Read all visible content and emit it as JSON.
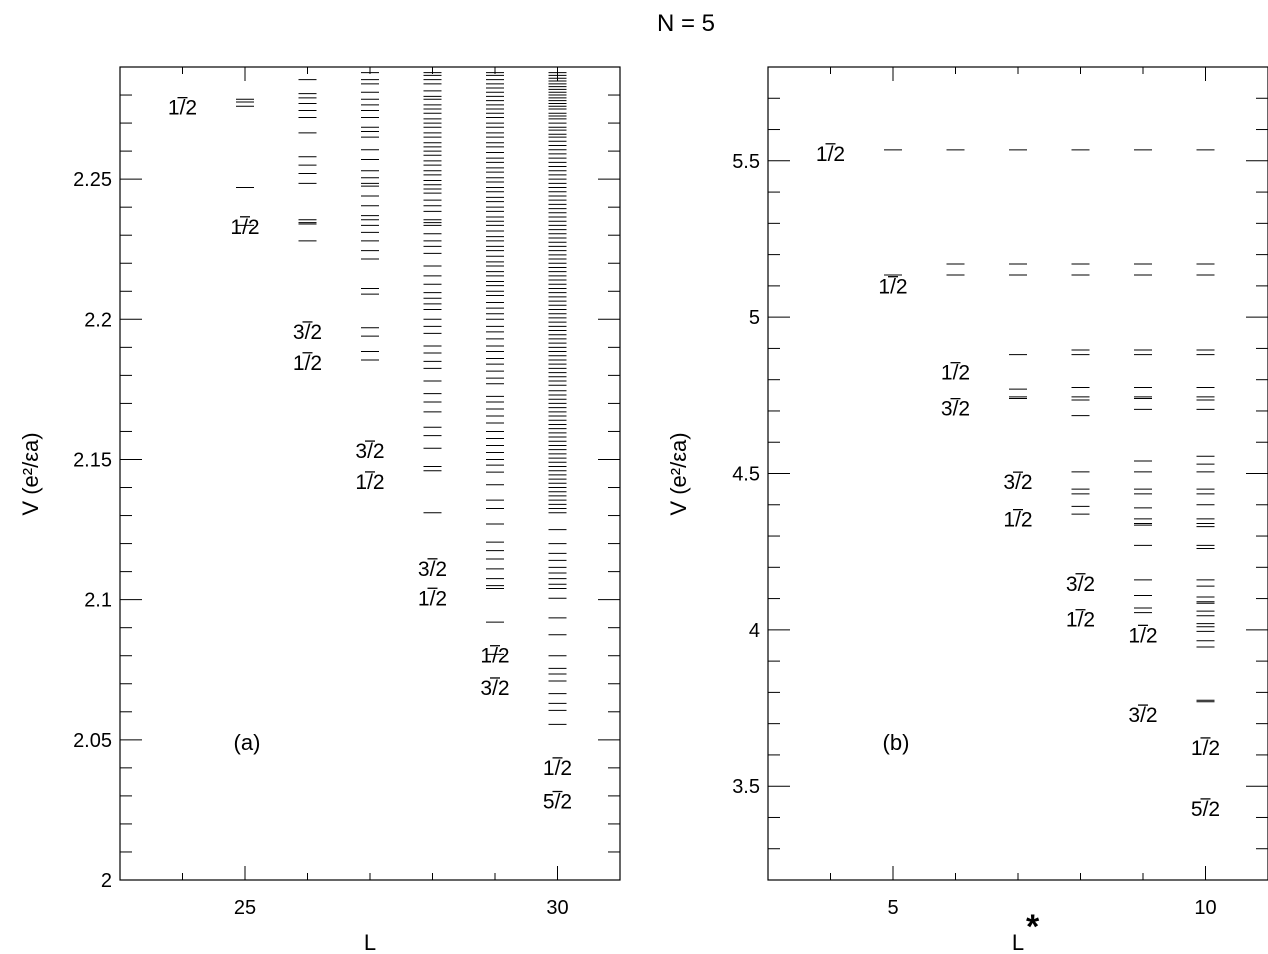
{
  "figure": {
    "title": "N = 5"
  },
  "colors": {
    "axis": "#000000",
    "levels": "#000000",
    "background": "#ffffff"
  },
  "chart_data": [
    {
      "type": "scatter",
      "panel_label": "(a)",
      "xlabel": "L",
      "ylabel": "V",
      "ylabel_unit": "(e²/εa)",
      "xlim": [
        23,
        31
      ],
      "ylim": [
        2.0,
        2.29
      ],
      "xticks": [
        25,
        30
      ],
      "yticks": [
        2,
        2.05,
        2.1,
        2.15,
        2.2,
        2.25
      ],
      "ytick_labels": [
        "2",
        "2.05",
        "2.1",
        "2.15",
        "2.2",
        "2.25"
      ],
      "grid": false,
      "levels": [
        {
          "L": 25,
          "values": [
            2.2785,
            2.2775,
            2.276,
            2.247,
            2.2335
          ]
        },
        {
          "L": 26,
          "values": [
            2.2855,
            2.2805,
            2.279,
            2.277,
            2.2745,
            2.272,
            2.2665,
            2.258,
            2.255,
            2.252,
            2.2485,
            2.2355,
            2.2345,
            2.234,
            2.228
          ]
        },
        {
          "L": 27,
          "values": [
            2.288,
            2.2855,
            2.284,
            2.281,
            2.2785,
            2.2765,
            2.2745,
            2.272,
            2.2685,
            2.267,
            2.265,
            2.2605,
            2.257,
            2.253,
            2.2505,
            2.2485,
            2.2475,
            2.244,
            2.2405,
            2.237,
            2.2355,
            2.2335,
            2.231,
            2.228,
            2.2245,
            2.2215,
            2.211,
            2.209,
            2.197,
            2.194,
            2.1885,
            2.1855
          ]
        },
        {
          "L": 28,
          "values": [
            2.288,
            2.287,
            2.2855,
            2.284,
            2.2815,
            2.2795,
            2.2785,
            2.2765,
            2.275,
            2.2735,
            2.2715,
            2.27,
            2.2685,
            2.2665,
            2.265,
            2.263,
            2.2615,
            2.26,
            2.2585,
            2.2565,
            2.255,
            2.253,
            2.2515,
            2.2495,
            2.248,
            2.2465,
            2.245,
            2.2425,
            2.2405,
            2.2385,
            2.2355,
            2.2345,
            2.2335,
            2.2305,
            2.228,
            2.226,
            2.2235,
            2.219,
            2.2155,
            2.2125,
            2.2095,
            2.2075,
            2.2055,
            2.2035,
            2.2,
            2.1975,
            2.195,
            2.1905,
            2.188,
            2.185,
            2.1825,
            2.178,
            2.1735,
            2.1705,
            2.167,
            2.1615,
            2.1585,
            2.154,
            2.1475,
            2.146,
            2.131
          ]
        },
        {
          "L": 29,
          "values": [
            2.288,
            2.287,
            2.2855,
            2.284,
            2.2825,
            2.281,
            2.2795,
            2.278,
            2.2765,
            2.275,
            2.2735,
            2.272,
            2.27,
            2.2685,
            2.2665,
            2.265,
            2.263,
            2.2615,
            2.2595,
            2.2575,
            2.256,
            2.254,
            2.2525,
            2.2505,
            2.249,
            2.247,
            2.2455,
            2.2435,
            2.242,
            2.24,
            2.2385,
            2.2365,
            2.235,
            2.2335,
            2.2315,
            2.2295,
            2.228,
            2.226,
            2.2245,
            2.2225,
            2.2205,
            2.219,
            2.217,
            2.2155,
            2.2135,
            2.212,
            2.21,
            2.2085,
            2.206,
            2.204,
            2.202,
            2.2,
            2.1975,
            2.1955,
            2.193,
            2.1905,
            2.1885,
            2.186,
            2.184,
            2.1815,
            2.179,
            2.177,
            2.1725,
            2.1705,
            2.168,
            2.1655,
            2.163,
            2.16,
            2.1575,
            2.155,
            2.1525,
            2.15,
            2.148,
            2.1455,
            2.141,
            2.1355,
            2.1325,
            2.127,
            2.1205,
            2.1175,
            2.1145,
            2.111,
            2.1075,
            2.105,
            2.104,
            2.092,
            2.0805
          ]
        },
        {
          "L": 30,
          "values": [
            2.288,
            2.287,
            2.286,
            2.285,
            2.284,
            2.283,
            2.282,
            2.281,
            2.28,
            2.279,
            2.278,
            2.277,
            2.276,
            2.275,
            2.2735,
            2.2725,
            2.2715,
            2.27,
            2.2685,
            2.2675,
            2.266,
            2.265,
            2.2635,
            2.262,
            2.2605,
            2.259,
            2.2575,
            2.256,
            2.2545,
            2.253,
            2.2515,
            2.25,
            2.2485,
            2.247,
            2.2455,
            2.244,
            2.2425,
            2.241,
            2.2395,
            2.238,
            2.2365,
            2.235,
            2.2335,
            2.232,
            2.2305,
            2.229,
            2.2275,
            2.226,
            2.2245,
            2.223,
            2.2215,
            2.22,
            2.2185,
            2.217,
            2.2155,
            2.214,
            2.2125,
            2.211,
            2.2095,
            2.208,
            2.2065,
            2.205,
            2.2035,
            2.202,
            2.2005,
            2.199,
            2.1975,
            2.196,
            2.1945,
            2.193,
            2.1915,
            2.19,
            2.1885,
            2.187,
            2.1855,
            2.184,
            2.1825,
            2.181,
            2.1795,
            2.178,
            2.1765,
            2.1745,
            2.173,
            2.1715,
            2.17,
            2.1685,
            2.167,
            2.1655,
            2.164,
            2.1625,
            2.161,
            2.1595,
            2.158,
            2.1565,
            2.155,
            2.1535,
            2.152,
            2.1505,
            2.149,
            2.1475,
            2.146,
            2.1445,
            2.143,
            2.1415,
            2.14,
            2.1385,
            2.137,
            2.1355,
            2.134,
            2.1325,
            2.131,
            2.125,
            2.12,
            2.1165,
            2.114,
            2.1115,
            2.1095,
            2.1075,
            2.1055,
            2.104,
            2.1005,
            2.0935,
            2.0875,
            2.08,
            2.0755,
            2.0735,
            2.071,
            2.0665,
            2.063,
            2.0605,
            2.0555
          ]
        }
      ],
      "annotations": [
        {
          "x": 24.0,
          "y": 2.273,
          "text": "1/2",
          "bar": "1"
        },
        {
          "x": 25.0,
          "y": 2.2305,
          "text": "1/2",
          "bar": "1"
        },
        {
          "x": 26.0,
          "y": 2.193,
          "text": "3/2",
          "bar": "3"
        },
        {
          "x": 26.0,
          "y": 2.182,
          "text": "1/2",
          "bar": "1"
        },
        {
          "x": 27.0,
          "y": 2.1505,
          "text": "3/2",
          "bar": "3"
        },
        {
          "x": 27.0,
          "y": 2.1395,
          "text": "1/2",
          "bar": "1"
        },
        {
          "x": 28.0,
          "y": 2.1085,
          "text": "3/2",
          "bar": "3"
        },
        {
          "x": 28.0,
          "y": 2.098,
          "text": "1/2",
          "bar": "1"
        },
        {
          "x": 29.0,
          "y": 2.0775,
          "text": "1/2",
          "bar": "1"
        },
        {
          "x": 29.0,
          "y": 2.066,
          "text": "3/2",
          "bar": "3"
        },
        {
          "x": 30.0,
          "y": 2.0375,
          "text": "1/2",
          "bar": "1"
        },
        {
          "x": 30.0,
          "y": 2.0255,
          "text": "5/2",
          "bar": "5"
        }
      ]
    },
    {
      "type": "scatter",
      "panel_label": "(b)",
      "xlabel": "L",
      "xlabel_sup": "*",
      "ylabel": "V",
      "ylabel_unit": "(e²/εa)",
      "xlim": [
        3,
        11
      ],
      "ylim": [
        3.2,
        5.8
      ],
      "xticks": [
        5,
        10
      ],
      "yticks": [
        3.5,
        4,
        4.5,
        5,
        5.5
      ],
      "ytick_labels": [
        "3.5",
        "4",
        "4.5",
        "5",
        "5.5"
      ],
      "grid": false,
      "levels": [
        {
          "L": 5,
          "values": [
            5.535,
            5.135
          ]
        },
        {
          "L": 6,
          "values": [
            5.535,
            5.17,
            5.135
          ]
        },
        {
          "L": 7,
          "values": [
            5.535,
            5.17,
            5.135,
            4.88,
            4.77,
            4.745,
            4.74
          ]
        },
        {
          "L": 8,
          "values": [
            5.535,
            5.17,
            5.135,
            4.895,
            4.88,
            4.775,
            4.745,
            4.735,
            4.685,
            4.505,
            4.45,
            4.435,
            4.395,
            4.37
          ]
        },
        {
          "L": 9,
          "values": [
            5.535,
            5.17,
            5.135,
            4.895,
            4.88,
            4.775,
            4.745,
            4.74,
            4.705,
            4.54,
            4.505,
            4.45,
            4.435,
            4.39,
            4.355,
            4.34,
            4.335,
            4.27,
            4.16,
            4.11,
            4.07,
            4.055
          ]
        },
        {
          "L": 10,
          "values": [
            5.535,
            5.17,
            5.135,
            4.895,
            4.88,
            4.775,
            4.745,
            4.735,
            4.705,
            4.555,
            4.53,
            4.505,
            4.45,
            4.435,
            4.4,
            4.355,
            4.34,
            4.33,
            4.27,
            4.26,
            4.16,
            4.14,
            4.105,
            4.09,
            4.085,
            4.06,
            4.045,
            4.02,
            4.01,
            3.995,
            3.965,
            3.945,
            3.775,
            3.77
          ]
        }
      ],
      "annotations": [
        {
          "x": 4.0,
          "y": 5.5,
          "text": "1/2",
          "bar": "1"
        },
        {
          "x": 5.0,
          "y": 5.075,
          "text": "1/2",
          "bar": "1"
        },
        {
          "x": 6.0,
          "y": 4.8,
          "text": "1/2",
          "bar": "1"
        },
        {
          "x": 6.0,
          "y": 4.685,
          "text": "3/2",
          "bar": "3"
        },
        {
          "x": 7.0,
          "y": 4.45,
          "text": "3/2",
          "bar": "3"
        },
        {
          "x": 7.0,
          "y": 4.33,
          "text": "1/2",
          "bar": "1"
        },
        {
          "x": 8.0,
          "y": 4.125,
          "text": "3/2",
          "bar": "3"
        },
        {
          "x": 8.0,
          "y": 4.01,
          "text": "1/2",
          "bar": "1"
        },
        {
          "x": 9.0,
          "y": 3.96,
          "text": "1/2",
          "bar": "1"
        },
        {
          "x": 9.0,
          "y": 3.705,
          "text": "3/2",
          "bar": "3"
        },
        {
          "x": 10.0,
          "y": 3.6,
          "text": "1/2",
          "bar": "1"
        },
        {
          "x": 10.0,
          "y": 3.405,
          "text": "5/2",
          "bar": "5"
        }
      ]
    }
  ]
}
